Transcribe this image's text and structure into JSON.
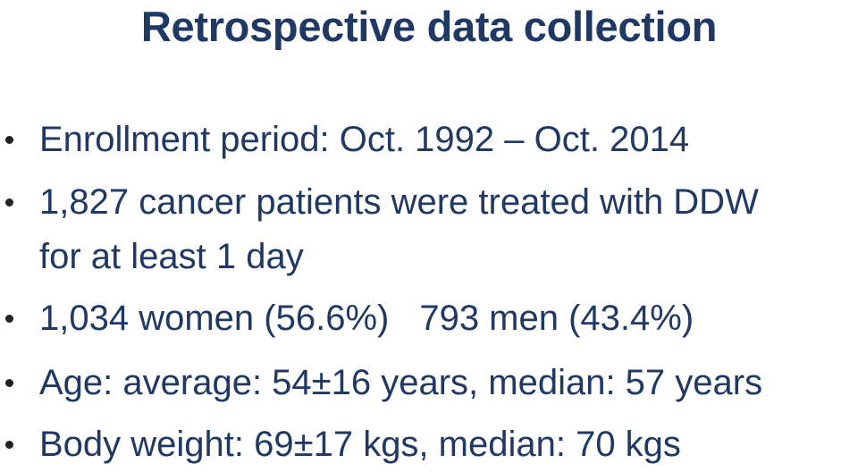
{
  "slide": {
    "title": "Retrospective data collection",
    "bullets": [
      "Enrollment period: Oct. 1992 – Oct. 2014",
      "1,827 cancer patients were treated with DDW",
      "for at least 1 day",
      "1,034 women (56.6%)",
      "793 men (43.4%)",
      "Age: average: 54±16 years, median: 57 years",
      "Body weight: 69±17 kgs, median: 70 kgs"
    ]
  },
  "colors": {
    "text": "#1f3864",
    "bullet": "#222222",
    "background": "#ffffff"
  }
}
